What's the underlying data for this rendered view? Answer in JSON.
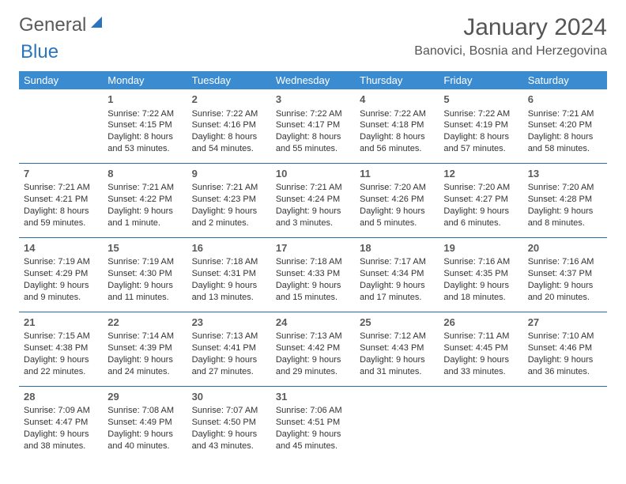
{
  "logo": {
    "text1": "General",
    "text2": "Blue"
  },
  "title": "January 2024",
  "location": "Banovici, Bosnia and Herzegovina",
  "colors": {
    "header_bg": "#3b8bd0",
    "header_text": "#ffffff",
    "row_border": "#2a6aa8",
    "logo_gray": "#5a5a5a",
    "logo_blue": "#2a75bb"
  },
  "weekdays": [
    "Sunday",
    "Monday",
    "Tuesday",
    "Wednesday",
    "Thursday",
    "Friday",
    "Saturday"
  ],
  "weeks": [
    [
      null,
      {
        "n": "1",
        "sr": "Sunrise: 7:22 AM",
        "ss": "Sunset: 4:15 PM",
        "d1": "Daylight: 8 hours",
        "d2": "and 53 minutes."
      },
      {
        "n": "2",
        "sr": "Sunrise: 7:22 AM",
        "ss": "Sunset: 4:16 PM",
        "d1": "Daylight: 8 hours",
        "d2": "and 54 minutes."
      },
      {
        "n": "3",
        "sr": "Sunrise: 7:22 AM",
        "ss": "Sunset: 4:17 PM",
        "d1": "Daylight: 8 hours",
        "d2": "and 55 minutes."
      },
      {
        "n": "4",
        "sr": "Sunrise: 7:22 AM",
        "ss": "Sunset: 4:18 PM",
        "d1": "Daylight: 8 hours",
        "d2": "and 56 minutes."
      },
      {
        "n": "5",
        "sr": "Sunrise: 7:22 AM",
        "ss": "Sunset: 4:19 PM",
        "d1": "Daylight: 8 hours",
        "d2": "and 57 minutes."
      },
      {
        "n": "6",
        "sr": "Sunrise: 7:21 AM",
        "ss": "Sunset: 4:20 PM",
        "d1": "Daylight: 8 hours",
        "d2": "and 58 minutes."
      }
    ],
    [
      {
        "n": "7",
        "sr": "Sunrise: 7:21 AM",
        "ss": "Sunset: 4:21 PM",
        "d1": "Daylight: 8 hours",
        "d2": "and 59 minutes."
      },
      {
        "n": "8",
        "sr": "Sunrise: 7:21 AM",
        "ss": "Sunset: 4:22 PM",
        "d1": "Daylight: 9 hours",
        "d2": "and 1 minute."
      },
      {
        "n": "9",
        "sr": "Sunrise: 7:21 AM",
        "ss": "Sunset: 4:23 PM",
        "d1": "Daylight: 9 hours",
        "d2": "and 2 minutes."
      },
      {
        "n": "10",
        "sr": "Sunrise: 7:21 AM",
        "ss": "Sunset: 4:24 PM",
        "d1": "Daylight: 9 hours",
        "d2": "and 3 minutes."
      },
      {
        "n": "11",
        "sr": "Sunrise: 7:20 AM",
        "ss": "Sunset: 4:26 PM",
        "d1": "Daylight: 9 hours",
        "d2": "and 5 minutes."
      },
      {
        "n": "12",
        "sr": "Sunrise: 7:20 AM",
        "ss": "Sunset: 4:27 PM",
        "d1": "Daylight: 9 hours",
        "d2": "and 6 minutes."
      },
      {
        "n": "13",
        "sr": "Sunrise: 7:20 AM",
        "ss": "Sunset: 4:28 PM",
        "d1": "Daylight: 9 hours",
        "d2": "and 8 minutes."
      }
    ],
    [
      {
        "n": "14",
        "sr": "Sunrise: 7:19 AM",
        "ss": "Sunset: 4:29 PM",
        "d1": "Daylight: 9 hours",
        "d2": "and 9 minutes."
      },
      {
        "n": "15",
        "sr": "Sunrise: 7:19 AM",
        "ss": "Sunset: 4:30 PM",
        "d1": "Daylight: 9 hours",
        "d2": "and 11 minutes."
      },
      {
        "n": "16",
        "sr": "Sunrise: 7:18 AM",
        "ss": "Sunset: 4:31 PM",
        "d1": "Daylight: 9 hours",
        "d2": "and 13 minutes."
      },
      {
        "n": "17",
        "sr": "Sunrise: 7:18 AM",
        "ss": "Sunset: 4:33 PM",
        "d1": "Daylight: 9 hours",
        "d2": "and 15 minutes."
      },
      {
        "n": "18",
        "sr": "Sunrise: 7:17 AM",
        "ss": "Sunset: 4:34 PM",
        "d1": "Daylight: 9 hours",
        "d2": "and 17 minutes."
      },
      {
        "n": "19",
        "sr": "Sunrise: 7:16 AM",
        "ss": "Sunset: 4:35 PM",
        "d1": "Daylight: 9 hours",
        "d2": "and 18 minutes."
      },
      {
        "n": "20",
        "sr": "Sunrise: 7:16 AM",
        "ss": "Sunset: 4:37 PM",
        "d1": "Daylight: 9 hours",
        "d2": "and 20 minutes."
      }
    ],
    [
      {
        "n": "21",
        "sr": "Sunrise: 7:15 AM",
        "ss": "Sunset: 4:38 PM",
        "d1": "Daylight: 9 hours",
        "d2": "and 22 minutes."
      },
      {
        "n": "22",
        "sr": "Sunrise: 7:14 AM",
        "ss": "Sunset: 4:39 PM",
        "d1": "Daylight: 9 hours",
        "d2": "and 24 minutes."
      },
      {
        "n": "23",
        "sr": "Sunrise: 7:13 AM",
        "ss": "Sunset: 4:41 PM",
        "d1": "Daylight: 9 hours",
        "d2": "and 27 minutes."
      },
      {
        "n": "24",
        "sr": "Sunrise: 7:13 AM",
        "ss": "Sunset: 4:42 PM",
        "d1": "Daylight: 9 hours",
        "d2": "and 29 minutes."
      },
      {
        "n": "25",
        "sr": "Sunrise: 7:12 AM",
        "ss": "Sunset: 4:43 PM",
        "d1": "Daylight: 9 hours",
        "d2": "and 31 minutes."
      },
      {
        "n": "26",
        "sr": "Sunrise: 7:11 AM",
        "ss": "Sunset: 4:45 PM",
        "d1": "Daylight: 9 hours",
        "d2": "and 33 minutes."
      },
      {
        "n": "27",
        "sr": "Sunrise: 7:10 AM",
        "ss": "Sunset: 4:46 PM",
        "d1": "Daylight: 9 hours",
        "d2": "and 36 minutes."
      }
    ],
    [
      {
        "n": "28",
        "sr": "Sunrise: 7:09 AM",
        "ss": "Sunset: 4:47 PM",
        "d1": "Daylight: 9 hours",
        "d2": "and 38 minutes."
      },
      {
        "n": "29",
        "sr": "Sunrise: 7:08 AM",
        "ss": "Sunset: 4:49 PM",
        "d1": "Daylight: 9 hours",
        "d2": "and 40 minutes."
      },
      {
        "n": "30",
        "sr": "Sunrise: 7:07 AM",
        "ss": "Sunset: 4:50 PM",
        "d1": "Daylight: 9 hours",
        "d2": "and 43 minutes."
      },
      {
        "n": "31",
        "sr": "Sunrise: 7:06 AM",
        "ss": "Sunset: 4:51 PM",
        "d1": "Daylight: 9 hours",
        "d2": "and 45 minutes."
      },
      null,
      null,
      null
    ]
  ]
}
